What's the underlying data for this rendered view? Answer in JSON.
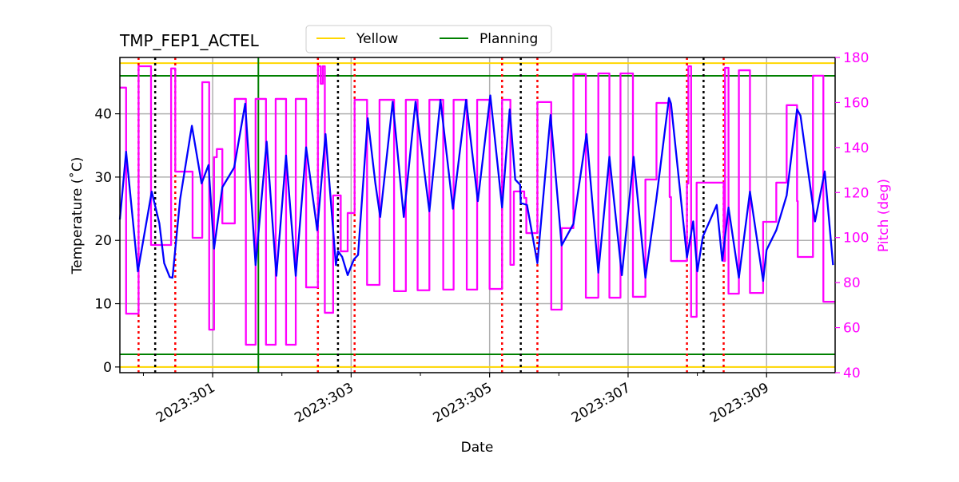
{
  "chart_data": {
    "type": "line",
    "title": "TMP_FEP1_ACTEL",
    "xlabel": "Date",
    "ylabel": "Temperature ($^\\circ$C)",
    "ylabel_display": "Temperature (˚C)",
    "y2label": "Pitch (deg)",
    "xlim": [
      299.66,
      309.99
    ],
    "ylim": [
      -0.9,
      48.9
    ],
    "y2lim": [
      40,
      180
    ],
    "grid": true,
    "legend_placement": "top-center",
    "x_ticks": {
      "values": [
        301,
        303,
        305,
        307,
        309
      ],
      "labels": [
        "2023:301",
        "2023:303",
        "2023:305",
        "2023:307",
        "2023:309"
      ],
      "minor": [
        300,
        302,
        304,
        306,
        308
      ]
    },
    "y_ticks": {
      "values": [
        0,
        10,
        20,
        30,
        40
      ],
      "labels": [
        "0",
        "10",
        "20",
        "30",
        "40"
      ]
    },
    "y2_ticks": {
      "values": [
        40,
        60,
        80,
        100,
        120,
        140,
        160,
        180
      ],
      "labels": [
        "40",
        "60",
        "80",
        "100",
        "120",
        "140",
        "160",
        "180"
      ]
    },
    "legend": [
      {
        "name": "Yellow",
        "color": "#ffd700"
      },
      {
        "name": "Planning",
        "color": "#008000"
      }
    ],
    "limits": {
      "yellow": {
        "values": [
          0,
          48
        ],
        "color": "#ffd700"
      },
      "planning": {
        "values": [
          2,
          46
        ],
        "color": "#008000"
      }
    },
    "vlines": {
      "green": {
        "days": [
          301.66
        ],
        "color": "#008000"
      },
      "red_dotted": {
        "days": [
          299.93,
          300.46,
          302.52,
          303.05,
          305.18,
          305.69,
          307.85,
          308.38
        ],
        "color": "#ff0000"
      },
      "black_dotted": {
        "days": [
          300.17,
          302.81,
          305.45,
          308.09
        ],
        "color": "#000000"
      }
    },
    "series": [
      {
        "axis": "left",
        "color": "#0000ff",
        "style": "line",
        "points": [
          [
            299.66,
            23.3
          ],
          [
            299.75,
            34.0
          ],
          [
            299.92,
            15.1
          ],
          [
            300.12,
            27.7
          ],
          [
            300.23,
            22.7
          ],
          [
            300.3,
            16.4
          ],
          [
            300.38,
            14.2
          ],
          [
            300.42,
            14.1
          ],
          [
            300.53,
            26.5
          ],
          [
            300.7,
            38.1
          ],
          [
            300.84,
            29.0
          ],
          [
            300.94,
            31.9
          ],
          [
            301.02,
            18.7
          ],
          [
            301.14,
            28.4
          ],
          [
            301.31,
            31.5
          ],
          [
            301.47,
            41.6
          ],
          [
            301.62,
            16.1
          ],
          [
            301.78,
            35.6
          ],
          [
            301.92,
            14.4
          ],
          [
            302.06,
            33.4
          ],
          [
            302.2,
            14.4
          ],
          [
            302.35,
            34.7
          ],
          [
            302.51,
            21.6
          ],
          [
            302.63,
            36.8
          ],
          [
            302.78,
            16.1
          ],
          [
            302.81,
            18.3
          ],
          [
            302.87,
            17.4
          ],
          [
            302.95,
            14.5
          ],
          [
            303.04,
            17.0
          ],
          [
            303.1,
            17.7
          ],
          [
            303.24,
            39.3
          ],
          [
            303.35,
            29.0
          ],
          [
            303.42,
            23.7
          ],
          [
            303.6,
            41.9
          ],
          [
            303.76,
            23.7
          ],
          [
            303.93,
            41.9
          ],
          [
            304.13,
            24.6
          ],
          [
            304.29,
            42.2
          ],
          [
            304.47,
            25.0
          ],
          [
            304.66,
            42.2
          ],
          [
            304.83,
            26.2
          ],
          [
            305.01,
            42.9
          ],
          [
            305.18,
            25.2
          ],
          [
            305.29,
            40.7
          ],
          [
            305.37,
            29.6
          ],
          [
            305.44,
            28.8
          ],
          [
            305.45,
            25.9
          ],
          [
            305.54,
            25.6
          ],
          [
            305.69,
            16.4
          ],
          [
            305.88,
            39.8
          ],
          [
            306.04,
            19.2
          ],
          [
            306.21,
            22.6
          ],
          [
            306.4,
            36.8
          ],
          [
            306.57,
            14.9
          ],
          [
            306.73,
            33.2
          ],
          [
            306.91,
            14.5
          ],
          [
            307.08,
            33.2
          ],
          [
            307.25,
            14.1
          ],
          [
            307.41,
            26.7
          ],
          [
            307.59,
            42.5
          ],
          [
            307.62,
            41.6
          ],
          [
            307.85,
            17.3
          ],
          [
            307.94,
            23.0
          ],
          [
            308.0,
            15.1
          ],
          [
            308.08,
            20.6
          ],
          [
            308.28,
            25.6
          ],
          [
            308.36,
            16.8
          ],
          [
            308.45,
            25.2
          ],
          [
            308.6,
            14.1
          ],
          [
            308.76,
            27.7
          ],
          [
            308.95,
            13.6
          ],
          [
            309.0,
            18.5
          ],
          [
            309.14,
            21.6
          ],
          [
            309.29,
            27.1
          ],
          [
            309.44,
            40.7
          ],
          [
            309.49,
            39.7
          ],
          [
            309.7,
            23.0
          ],
          [
            309.84,
            30.9
          ],
          [
            309.96,
            16.1
          ]
        ]
      },
      {
        "axis": "right",
        "color": "#ff00ff",
        "style": "step-post",
        "points": [
          [
            299.66,
            166.6
          ],
          [
            299.75,
            66.2
          ],
          [
            299.93,
            176.1
          ],
          [
            300.11,
            96.7
          ],
          [
            300.4,
            175.1
          ],
          [
            300.46,
            129.3
          ],
          [
            300.71,
            99.9
          ],
          [
            300.85,
            169.0
          ],
          [
            300.95,
            59.1
          ],
          [
            301.02,
            135.7
          ],
          [
            301.06,
            139.3
          ],
          [
            301.14,
            106.3
          ],
          [
            301.32,
            161.6
          ],
          [
            301.48,
            52.4
          ],
          [
            301.62,
            161.6
          ],
          [
            301.77,
            52.4
          ],
          [
            301.91,
            161.6
          ],
          [
            302.06,
            52.4
          ],
          [
            302.2,
            161.6
          ],
          [
            302.35,
            77.9
          ],
          [
            302.52,
            176.1
          ],
          [
            302.56,
            168.3
          ],
          [
            302.59,
            176.1
          ],
          [
            302.62,
            66.6
          ],
          [
            302.74,
            118.7
          ],
          [
            302.85,
            93.9
          ],
          [
            302.95,
            110.9
          ],
          [
            303.05,
            161.2
          ],
          [
            303.23,
            79.0
          ],
          [
            303.41,
            161.2
          ],
          [
            303.62,
            76.2
          ],
          [
            303.79,
            161.2
          ],
          [
            303.96,
            76.6
          ],
          [
            304.13,
            161.2
          ],
          [
            304.33,
            76.9
          ],
          [
            304.48,
            161.2
          ],
          [
            304.67,
            76.9
          ],
          [
            304.82,
            161.2
          ],
          [
            305.0,
            77.2
          ],
          [
            305.18,
            161.2
          ],
          [
            305.3,
            87.9
          ],
          [
            305.35,
            120.5
          ],
          [
            305.5,
            117.6
          ],
          [
            305.53,
            102.0
          ],
          [
            305.69,
            160.2
          ],
          [
            305.89,
            68.0
          ],
          [
            306.04,
            104.2
          ],
          [
            306.21,
            172.6
          ],
          [
            306.39,
            73.3
          ],
          [
            306.57,
            172.9
          ],
          [
            306.73,
            73.3
          ],
          [
            306.89,
            172.9
          ],
          [
            307.07,
            73.7
          ],
          [
            307.25,
            125.8
          ],
          [
            307.41,
            159.8
          ],
          [
            307.6,
            118.0
          ],
          [
            307.62,
            89.6
          ],
          [
            307.85,
            124.0
          ],
          [
            307.87,
            176.1
          ],
          [
            307.91,
            64.8
          ],
          [
            307.99,
            124.4
          ],
          [
            308.38,
            89.6
          ],
          [
            308.4,
            175.4
          ],
          [
            308.45,
            75.1
          ],
          [
            308.6,
            174.3
          ],
          [
            308.76,
            75.4
          ],
          [
            308.95,
            107.0
          ],
          [
            309.14,
            124.4
          ],
          [
            309.29,
            158.8
          ],
          [
            309.44,
            116.2
          ],
          [
            309.45,
            91.4
          ],
          [
            309.67,
            171.9
          ],
          [
            309.82,
            71.5
          ],
          [
            309.99,
            71.5
          ]
        ]
      }
    ]
  }
}
